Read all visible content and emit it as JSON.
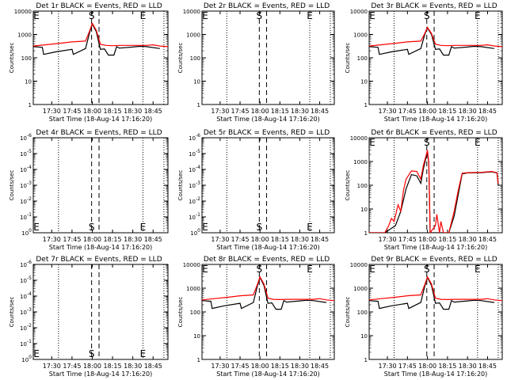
{
  "figure": {
    "xlabel": "Start Time (18-Aug-14 17:16:20)",
    "ylabel": "Counts/sec",
    "x_tick_labels": [
      "17:30",
      "17:45",
      "18:00",
      "18:15",
      "18:30",
      "18:45"
    ]
  },
  "chart_data": [
    {
      "type": "line",
      "title": "Det 1r BLACK = Events, RED = LLD",
      "xlabel": "Start Time (18-Aug-14 17:16:20)",
      "ylabel": "Counts/sec",
      "xlim": [
        "17:16:20",
        "18:56"
      ],
      "ylim": [
        1,
        10000
      ],
      "yscale": "log",
      "y_tick_labels": [
        "1",
        "10",
        "100",
        "1000",
        "10000"
      ],
      "markers": [
        {
          "label": "E",
          "x": "17:16:20"
        },
        {
          "label": "S",
          "x": "17:59:30"
        },
        {
          "label": "E",
          "x": "18:37:30"
        }
      ],
      "dashed_lines": [
        "17:59:30",
        "18:05"
      ],
      "dotted_lines": [
        "17:35",
        "18:37:30",
        "18:53"
      ],
      "series": [
        {
          "name": "BLACK = Events",
          "color": "#000000",
          "x": [
            "17:16:20",
            "17:23",
            "17:24",
            "17:33",
            "17:45",
            "17:46",
            "17:55",
            "17:58",
            "18:00",
            "18:03",
            "18:06",
            "18:09",
            "18:12",
            "18:16",
            "18:18",
            "18:20",
            "18:30",
            "18:35",
            "18:40",
            "18:50"
          ],
          "y": [
            300,
            280,
            140,
            180,
            230,
            140,
            250,
            1200,
            2800,
            1300,
            230,
            240,
            130,
            130,
            300,
            260,
            290,
            310,
            300,
            250
          ]
        },
        {
          "name": "RED = LLD",
          "color": "#ff0000",
          "x": [
            "17:16:20",
            "17:25",
            "17:35",
            "17:45",
            "17:55",
            "17:58",
            "18:00",
            "18:03",
            "18:06",
            "18:10",
            "18:15",
            "18:20",
            "18:30",
            "18:40",
            "18:45",
            "18:50",
            "18:56"
          ],
          "y": [
            320,
            360,
            410,
            480,
            520,
            1400,
            3000,
            1500,
            380,
            340,
            330,
            340,
            340,
            340,
            360,
            320,
            300
          ]
        }
      ]
    },
    {
      "type": "line",
      "title": "Det 2r BLACK = Events, RED = LLD",
      "xlabel": "Start Time (18-Aug-14 17:16:20)",
      "ylabel": "Counts/sec",
      "xlim": [
        "17:16:20",
        "18:56"
      ],
      "ylim": [
        1,
        10000
      ],
      "yscale": "log",
      "y_tick_labels": [
        "1",
        "10",
        "100",
        "1000",
        "10000"
      ],
      "markers": [
        {
          "label": "E",
          "x": "17:16:20"
        },
        {
          "label": "S",
          "x": "17:59:30"
        },
        {
          "label": "E",
          "x": "18:37:30"
        }
      ],
      "dashed_lines": [
        "17:59:30",
        "18:05"
      ],
      "dotted_lines": [
        "17:35",
        "18:37:30",
        "18:53"
      ],
      "series": []
    },
    {
      "type": "line",
      "title": "Det 3r BLACK = Events, RED = LLD",
      "xlabel": "Start Time (18-Aug-14 17:16:20)",
      "ylabel": "Counts/sec",
      "xlim": [
        "17:16:20",
        "18:56"
      ],
      "ylim": [
        1,
        10000
      ],
      "yscale": "log",
      "y_tick_labels": [
        "1",
        "10",
        "100",
        "1000",
        "10000"
      ],
      "markers": [
        {
          "label": "E",
          "x": "17:16:20"
        },
        {
          "label": "S",
          "x": "17:59:30"
        },
        {
          "label": "E",
          "x": "18:37:30"
        }
      ],
      "dashed_lines": [
        "17:59:30",
        "18:05"
      ],
      "dotted_lines": [
        "17:35",
        "18:37:30",
        "18:53"
      ],
      "series": [
        {
          "name": "BLACK = Events",
          "color": "#000000",
          "x": [
            "17:16:20",
            "17:23",
            "17:24",
            "17:33",
            "17:45",
            "17:46",
            "17:55",
            "17:58",
            "18:00",
            "18:03",
            "18:06",
            "18:09",
            "18:12",
            "18:16",
            "18:18",
            "18:20",
            "18:30",
            "18:35",
            "18:40",
            "18:50"
          ],
          "y": [
            300,
            280,
            140,
            180,
            230,
            140,
            250,
            1000,
            1900,
            1000,
            230,
            240,
            130,
            130,
            300,
            260,
            290,
            310,
            300,
            250
          ]
        },
        {
          "name": "RED = LLD",
          "color": "#ff0000",
          "x": [
            "17:16:20",
            "17:25",
            "17:35",
            "17:45",
            "17:55",
            "17:58",
            "18:00",
            "18:03",
            "18:06",
            "18:10",
            "18:15",
            "18:20",
            "18:30",
            "18:40",
            "18:45",
            "18:50",
            "18:56"
          ],
          "y": [
            320,
            360,
            410,
            480,
            520,
            1100,
            2000,
            1100,
            380,
            340,
            330,
            340,
            340,
            340,
            360,
            320,
            300
          ]
        }
      ]
    },
    {
      "type": "line",
      "title": "Det 4r BLACK = Events, RED = LLD",
      "xlabel": "Start Time (18-Aug-14 17:16:20)",
      "ylabel": "Counts/sec",
      "xlim": [
        "17:16:20",
        "18:56"
      ],
      "ylim": [
        "1e0",
        "1e-6"
      ],
      "yscale": "log",
      "y_tick_labels": [
        "10^0",
        "10^-1",
        "10^-2",
        "10^-3",
        "10^-4",
        "10^-5",
        "10^-6"
      ],
      "markers": [
        {
          "label": "E",
          "x": "17:16:20"
        },
        {
          "label": "S",
          "x": "17:59:30"
        },
        {
          "label": "E",
          "x": "18:37:30"
        }
      ],
      "dashed_lines": [
        "17:59:30",
        "18:05"
      ],
      "dotted_lines": [
        "17:35",
        "18:37:30",
        "18:53"
      ],
      "series": []
    },
    {
      "type": "line",
      "title": "Det 5r BLACK = Events, RED = LLD",
      "xlabel": "Start Time (18-Aug-14 17:16:20)",
      "ylabel": "Counts/sec",
      "xlim": [
        "17:16:20",
        "18:56"
      ],
      "ylim": [
        "1e0",
        "1e-6"
      ],
      "yscale": "log",
      "y_tick_labels": [
        "10^0",
        "10^-1",
        "10^-2",
        "10^-3",
        "10^-4",
        "10^-5",
        "10^-6"
      ],
      "markers": [
        {
          "label": "E",
          "x": "17:16:20"
        },
        {
          "label": "S",
          "x": "17:59:30"
        },
        {
          "label": "E",
          "x": "18:37:30"
        }
      ],
      "dashed_lines": [
        "17:59:30",
        "18:05"
      ],
      "dotted_lines": [
        "17:35",
        "18:37:30",
        "18:53"
      ],
      "series": []
    },
    {
      "type": "line",
      "title": "Det 6r BLACK = Events, RED = LLD",
      "xlabel": "Start Time (18-Aug-14 17:16:20)",
      "ylabel": "Counts/sec",
      "xlim": [
        "17:16:20",
        "18:56"
      ],
      "ylim": [
        1,
        10000
      ],
      "yscale": "log",
      "y_tick_labels": [
        "1",
        "10",
        "100",
        "1000",
        "10000"
      ],
      "markers": [
        {
          "label": "E",
          "x": "17:16:20"
        },
        {
          "label": "S",
          "x": "17:59:30"
        },
        {
          "label": "E",
          "x": "18:37:30"
        }
      ],
      "dashed_lines": [
        "17:59:30",
        "18:05"
      ],
      "dotted_lines": [
        "17:35",
        "18:37:30",
        "18:53"
      ],
      "series": [
        {
          "name": "BLACK = Events",
          "color": "#000000",
          "x": [
            "17:16:20",
            "17:28",
            "17:36",
            "17:40",
            "17:44",
            "17:48",
            "17:52",
            "17:55",
            "17:57",
            "17:59",
            "18:00",
            "18:01",
            "18:02",
            "18:10",
            "18:16",
            "18:20",
            "18:23",
            "18:26",
            "18:30",
            "18:40",
            "18:48",
            "18:52",
            "18:53"
          ],
          "y": [
            1,
            1,
            2,
            8,
            70,
            280,
            250,
            120,
            500,
            1500,
            2500,
            800,
            1,
            1,
            1,
            5,
            40,
            300,
            330,
            340,
            370,
            330,
            100
          ]
        },
        {
          "name": "RED = LLD",
          "color": "#ff0000",
          "x": [
            "17:16:20",
            "17:28",
            "17:31",
            "17:33",
            "17:35",
            "17:38",
            "17:40",
            "17:42",
            "17:44",
            "17:48",
            "17:52",
            "17:55",
            "17:57",
            "17:59",
            "18:00",
            "18:01",
            "18:02",
            "18:06",
            "18:07",
            "18:09",
            "18:10",
            "18:12",
            "18:16",
            "18:20",
            "18:23",
            "18:26",
            "18:30",
            "18:40",
            "18:48",
            "18:52",
            "18:53"
          ],
          "y": [
            1,
            1,
            2,
            4,
            3,
            15,
            8,
            60,
            180,
            400,
            380,
            180,
            700,
            1800,
            3000,
            900,
            1,
            2,
            6,
            1,
            3,
            1,
            1,
            8,
            60,
            320,
            340,
            350,
            380,
            340,
            120
          ]
        }
      ]
    },
    {
      "type": "line",
      "title": "Det 7r BLACK = Events, RED = LLD",
      "xlabel": "Start Time (18-Aug-14 17:16:20)",
      "ylabel": "Counts/sec",
      "xlim": [
        "17:16:20",
        "18:56"
      ],
      "ylim": [
        "1e0",
        "1e-6"
      ],
      "yscale": "log",
      "y_tick_labels": [
        "10^0",
        "10^-1",
        "10^-2",
        "10^-3",
        "10^-4",
        "10^-5",
        "10^-6"
      ],
      "markers": [
        {
          "label": "E",
          "x": "17:16:20"
        },
        {
          "label": "S",
          "x": "17:59:30"
        },
        {
          "label": "E",
          "x": "18:37:30"
        }
      ],
      "dashed_lines": [
        "17:59:30",
        "18:05"
      ],
      "dotted_lines": [
        "17:35",
        "18:37:30",
        "18:53"
      ],
      "series": []
    },
    {
      "type": "line",
      "title": "Det 8r BLACK = Events, RED = LLD",
      "xlabel": "Start Time (18-Aug-14 17:16:20)",
      "ylabel": "Counts/sec",
      "xlim": [
        "17:16:20",
        "18:56"
      ],
      "ylim": [
        1,
        10000
      ],
      "yscale": "log",
      "y_tick_labels": [
        "1",
        "10",
        "100",
        "1000",
        "10000"
      ],
      "markers": [
        {
          "label": "E",
          "x": "17:16:20"
        },
        {
          "label": "S",
          "x": "17:59:30"
        },
        {
          "label": "E",
          "x": "18:37:30"
        }
      ],
      "dashed_lines": [
        "17:59:30",
        "18:05"
      ],
      "dotted_lines": [
        "17:35",
        "18:37:30",
        "18:53"
      ],
      "series": [
        {
          "name": "BLACK = Events",
          "color": "#000000",
          "x": [
            "17:16:20",
            "17:23",
            "17:24",
            "17:33",
            "17:45",
            "17:46",
            "17:55",
            "17:58",
            "18:00",
            "18:03",
            "18:06",
            "18:09",
            "18:12",
            "18:16",
            "18:18",
            "18:20",
            "18:30",
            "18:35",
            "18:40",
            "18:50"
          ],
          "y": [
            300,
            280,
            140,
            180,
            230,
            140,
            250,
            1200,
            2800,
            1300,
            230,
            240,
            130,
            130,
            300,
            260,
            290,
            310,
            300,
            250
          ]
        },
        {
          "name": "RED = LLD",
          "color": "#ff0000",
          "x": [
            "17:16:20",
            "17:25",
            "17:35",
            "17:45",
            "17:55",
            "17:58",
            "18:00",
            "18:03",
            "18:06",
            "18:10",
            "18:15",
            "18:20",
            "18:30",
            "18:40",
            "18:45",
            "18:50",
            "18:56"
          ],
          "y": [
            320,
            360,
            410,
            480,
            520,
            1400,
            3000,
            1500,
            380,
            340,
            330,
            340,
            340,
            340,
            360,
            320,
            300
          ]
        }
      ]
    },
    {
      "type": "line",
      "title": "Det 9r BLACK = Events, RED = LLD",
      "xlabel": "Start Time (18-Aug-14 17:16:20)",
      "ylabel": "Counts/sec",
      "xlim": [
        "17:16:20",
        "18:56"
      ],
      "ylim": [
        1,
        10000
      ],
      "yscale": "log",
      "y_tick_labels": [
        "1",
        "10",
        "100",
        "1000",
        "10000"
      ],
      "markers": [
        {
          "label": "E",
          "x": "17:16:20"
        },
        {
          "label": "S",
          "x": "17:59:30"
        },
        {
          "label": "E",
          "x": "18:37:30"
        }
      ],
      "dashed_lines": [
        "17:59:30",
        "18:05"
      ],
      "dotted_lines": [
        "17:35",
        "18:37:30",
        "18:53"
      ],
      "series": [
        {
          "name": "BLACK = Events",
          "color": "#000000",
          "x": [
            "17:16:20",
            "17:23",
            "17:24",
            "17:33",
            "17:45",
            "17:46",
            "17:55",
            "17:58",
            "18:00",
            "18:03",
            "18:06",
            "18:09",
            "18:12",
            "18:16",
            "18:18",
            "18:20",
            "18:30",
            "18:35",
            "18:40",
            "18:50"
          ],
          "y": [
            300,
            280,
            140,
            180,
            230,
            140,
            250,
            1200,
            2800,
            1300,
            230,
            240,
            130,
            130,
            300,
            260,
            290,
            310,
            300,
            250
          ]
        },
        {
          "name": "RED = LLD",
          "color": "#ff0000",
          "x": [
            "17:16:20",
            "17:25",
            "17:35",
            "17:45",
            "17:55",
            "17:58",
            "18:00",
            "18:03",
            "18:06",
            "18:10",
            "18:15",
            "18:20",
            "18:30",
            "18:40",
            "18:45",
            "18:50",
            "18:56"
          ],
          "y": [
            320,
            360,
            410,
            480,
            520,
            1400,
            3000,
            1500,
            380,
            340,
            330,
            340,
            340,
            340,
            360,
            320,
            300
          ]
        }
      ]
    }
  ]
}
